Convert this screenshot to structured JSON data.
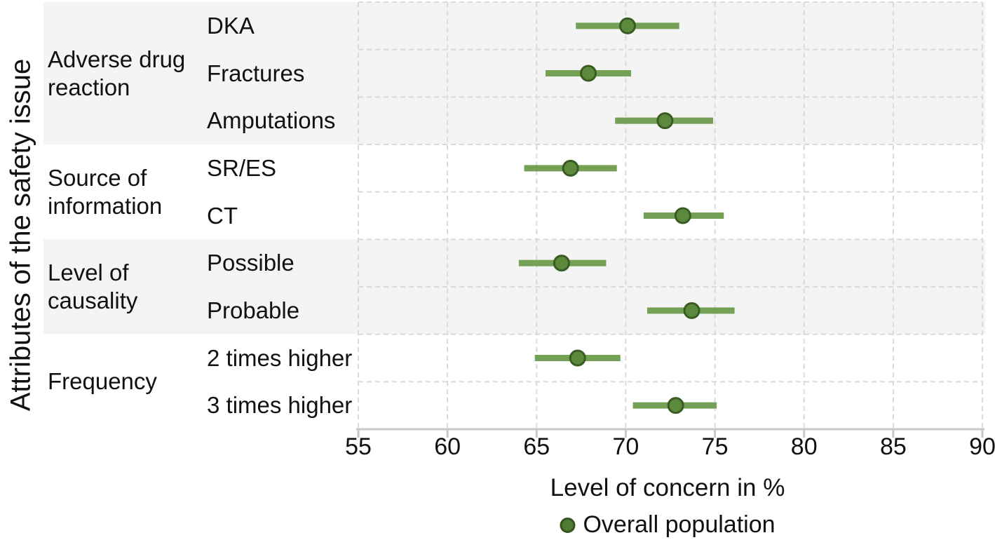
{
  "figure": {
    "y_axis_title": "Attributes of the safety issue",
    "x_axis_title": "Level of concern in %",
    "legend_label": "Overall population"
  },
  "chart_data": {
    "type": "scatter",
    "subtype": "horizontal dot-interval (forest plot)",
    "title": "",
    "xlabel": "Level of concern in %",
    "ylabel": "Attributes of the safety issue",
    "xlim": [
      55,
      90
    ],
    "x_ticks": [
      55,
      60,
      65,
      70,
      75,
      80,
      85,
      90
    ],
    "grid": "dashed vertical lines at each x tick and dashed horizontal lines at each row boundary",
    "legend": {
      "position": "bottom-center",
      "entries": [
        "Overall population"
      ]
    },
    "series_name": "Overall population",
    "groups": [
      {
        "label": "Adverse drug\nreaction",
        "shaded": true,
        "items": [
          {
            "label": "DKA",
            "value": 70.1,
            "ci_low": 67.2,
            "ci_high": 73.0
          },
          {
            "label": "Fractures",
            "value": 67.9,
            "ci_low": 65.5,
            "ci_high": 70.3
          },
          {
            "label": "Amputations",
            "value": 72.2,
            "ci_low": 69.4,
            "ci_high": 74.9
          }
        ]
      },
      {
        "label": "Source of\ninformation",
        "shaded": false,
        "items": [
          {
            "label": "SR/ES",
            "value": 66.9,
            "ci_low": 64.3,
            "ci_high": 69.5
          },
          {
            "label": "CT",
            "value": 73.2,
            "ci_low": 71.0,
            "ci_high": 75.5
          }
        ]
      },
      {
        "label": "Level of\ncausality",
        "shaded": true,
        "items": [
          {
            "label": "Possible",
            "value": 66.4,
            "ci_low": 64.0,
            "ci_high": 68.9
          },
          {
            "label": "Probable",
            "value": 73.7,
            "ci_low": 71.2,
            "ci_high": 76.1
          }
        ]
      },
      {
        "label": "Frequency",
        "shaded": false,
        "items": [
          {
            "label": "2 times higher",
            "value": 67.3,
            "ci_low": 64.9,
            "ci_high": 69.7
          },
          {
            "label": "3 times higher",
            "value": 72.8,
            "ci_low": 70.4,
            "ci_high": 75.1
          }
        ]
      }
    ],
    "colors": {
      "interval_line": "#74a156",
      "marker_fill": "#5b8a3d",
      "marker_stroke": "#3a5c22",
      "legend_dot_fill": "#4e7c33",
      "legend_dot_stroke": "#35541f",
      "band_shaded": "#f4f4f4",
      "grid_line": "#dadada",
      "axis_line": "#c8c8c8",
      "text": "#111111"
    }
  }
}
